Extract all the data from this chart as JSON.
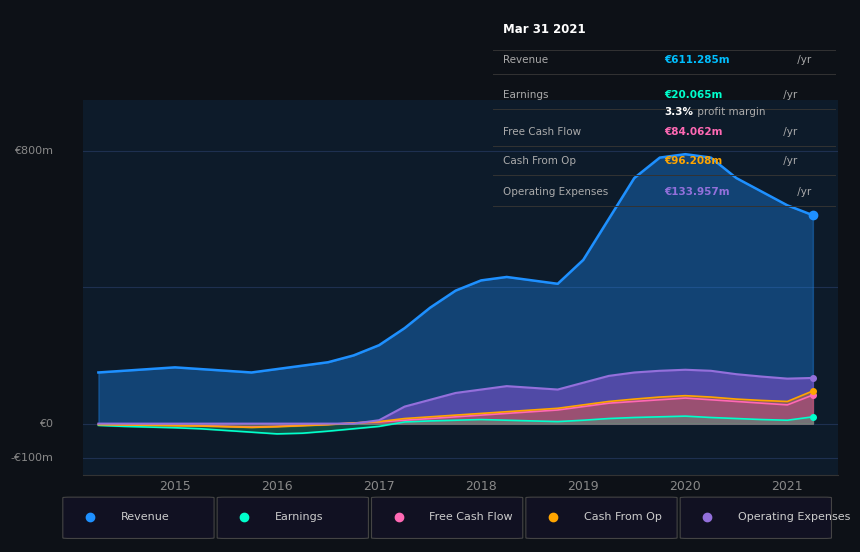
{
  "bg_color": "#0d1117",
  "plot_bg_color": "#0d1b2a",
  "ylabel_800": "€800m",
  "ylabel_0": "€0",
  "ylabel_minus100": "-€100m",
  "x_ticks": [
    2015,
    2016,
    2017,
    2018,
    2019,
    2020,
    2021
  ],
  "ylim": [
    -150,
    950
  ],
  "gridline_color": "#1e3050",
  "gridline_y": [
    800,
    400,
    0,
    -100
  ],
  "tooltip": {
    "date": "Mar 31 2021",
    "revenue_label": "Revenue",
    "revenue_value": "€611.285m",
    "revenue_color": "#00bfff",
    "earnings_label": "Earnings",
    "earnings_value": "€20.065m",
    "earnings_color": "#00ffcc",
    "margin_bold": "3.3%",
    "margin_rest": " profit margin",
    "margin_color": "#ffffff",
    "fcf_label": "Free Cash Flow",
    "fcf_value": "€84.062m",
    "fcf_color": "#ff69b4",
    "cashop_label": "Cash From Op",
    "cashop_value": "€96.208m",
    "cashop_color": "#ffa500",
    "opex_label": "Operating Expenses",
    "opex_value": "€133.957m",
    "opex_color": "#9370db",
    "label_color": "#aaaaaa",
    "title_color": "#ffffff",
    "divider_color": "#333333",
    "bg_color": "#0a0a0a"
  },
  "legend": [
    {
      "label": "Revenue",
      "color": "#1e90ff"
    },
    {
      "label": "Earnings",
      "color": "#00ffcc"
    },
    {
      "label": "Free Cash Flow",
      "color": "#ff69b4"
    },
    {
      "label": "Cash From Op",
      "color": "#ffa500"
    },
    {
      "label": "Operating Expenses",
      "color": "#9370db"
    }
  ],
  "series": {
    "x": [
      2014.25,
      2014.5,
      2014.75,
      2015.0,
      2015.25,
      2015.5,
      2015.75,
      2016.0,
      2016.25,
      2016.5,
      2016.75,
      2017.0,
      2017.25,
      2017.5,
      2017.75,
      2018.0,
      2018.25,
      2018.5,
      2018.75,
      2019.0,
      2019.25,
      2019.5,
      2019.75,
      2020.0,
      2020.25,
      2020.5,
      2020.75,
      2021.0,
      2021.25
    ],
    "revenue": [
      150,
      155,
      160,
      165,
      160,
      155,
      150,
      160,
      170,
      180,
      200,
      230,
      280,
      340,
      390,
      420,
      430,
      420,
      410,
      480,
      600,
      720,
      780,
      790,
      780,
      720,
      680,
      640,
      611
    ],
    "earnings": [
      -5,
      -8,
      -10,
      -12,
      -15,
      -20,
      -25,
      -30,
      -28,
      -22,
      -15,
      -8,
      5,
      8,
      10,
      12,
      10,
      8,
      6,
      10,
      15,
      18,
      20,
      22,
      18,
      15,
      12,
      10,
      20
    ],
    "fcf": [
      -2,
      -3,
      -4,
      -5,
      -6,
      -8,
      -10,
      -8,
      -5,
      -2,
      2,
      5,
      10,
      15,
      20,
      25,
      30,
      35,
      40,
      50,
      60,
      65,
      70,
      75,
      70,
      65,
      60,
      55,
      84
    ],
    "cashop": [
      -3,
      -4,
      -5,
      -6,
      -7,
      -9,
      -11,
      -9,
      -6,
      -3,
      2,
      6,
      15,
      20,
      25,
      30,
      35,
      40,
      45,
      55,
      65,
      72,
      78,
      82,
      78,
      72,
      68,
      65,
      96
    ],
    "opex": [
      0,
      0,
      0,
      0,
      0,
      0,
      0,
      0,
      0,
      0,
      0,
      10,
      50,
      70,
      90,
      100,
      110,
      105,
      100,
      120,
      140,
      150,
      155,
      158,
      155,
      145,
      138,
      132,
      134
    ]
  }
}
